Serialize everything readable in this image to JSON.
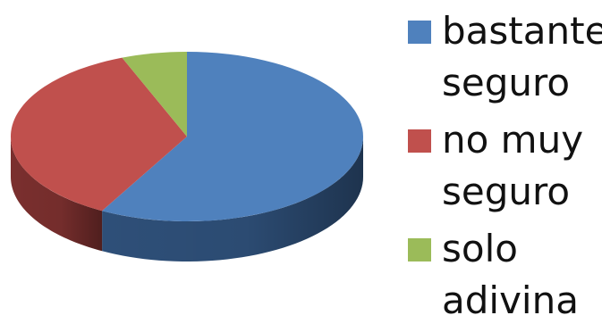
{
  "chart_data": {
    "type": "pie",
    "style": "3d",
    "legend_position": "right",
    "categories": [
      "bastante\nseguro",
      "no muy\nseguro",
      "solo\nadivina"
    ],
    "values": [
      58,
      36,
      6
    ],
    "colors": [
      "#4f81bd",
      "#c0504d",
      "#9bbb59"
    ],
    "side_colors": [
      "#2e4f78",
      "#7a2f2e",
      "#5f7a35"
    ]
  }
}
